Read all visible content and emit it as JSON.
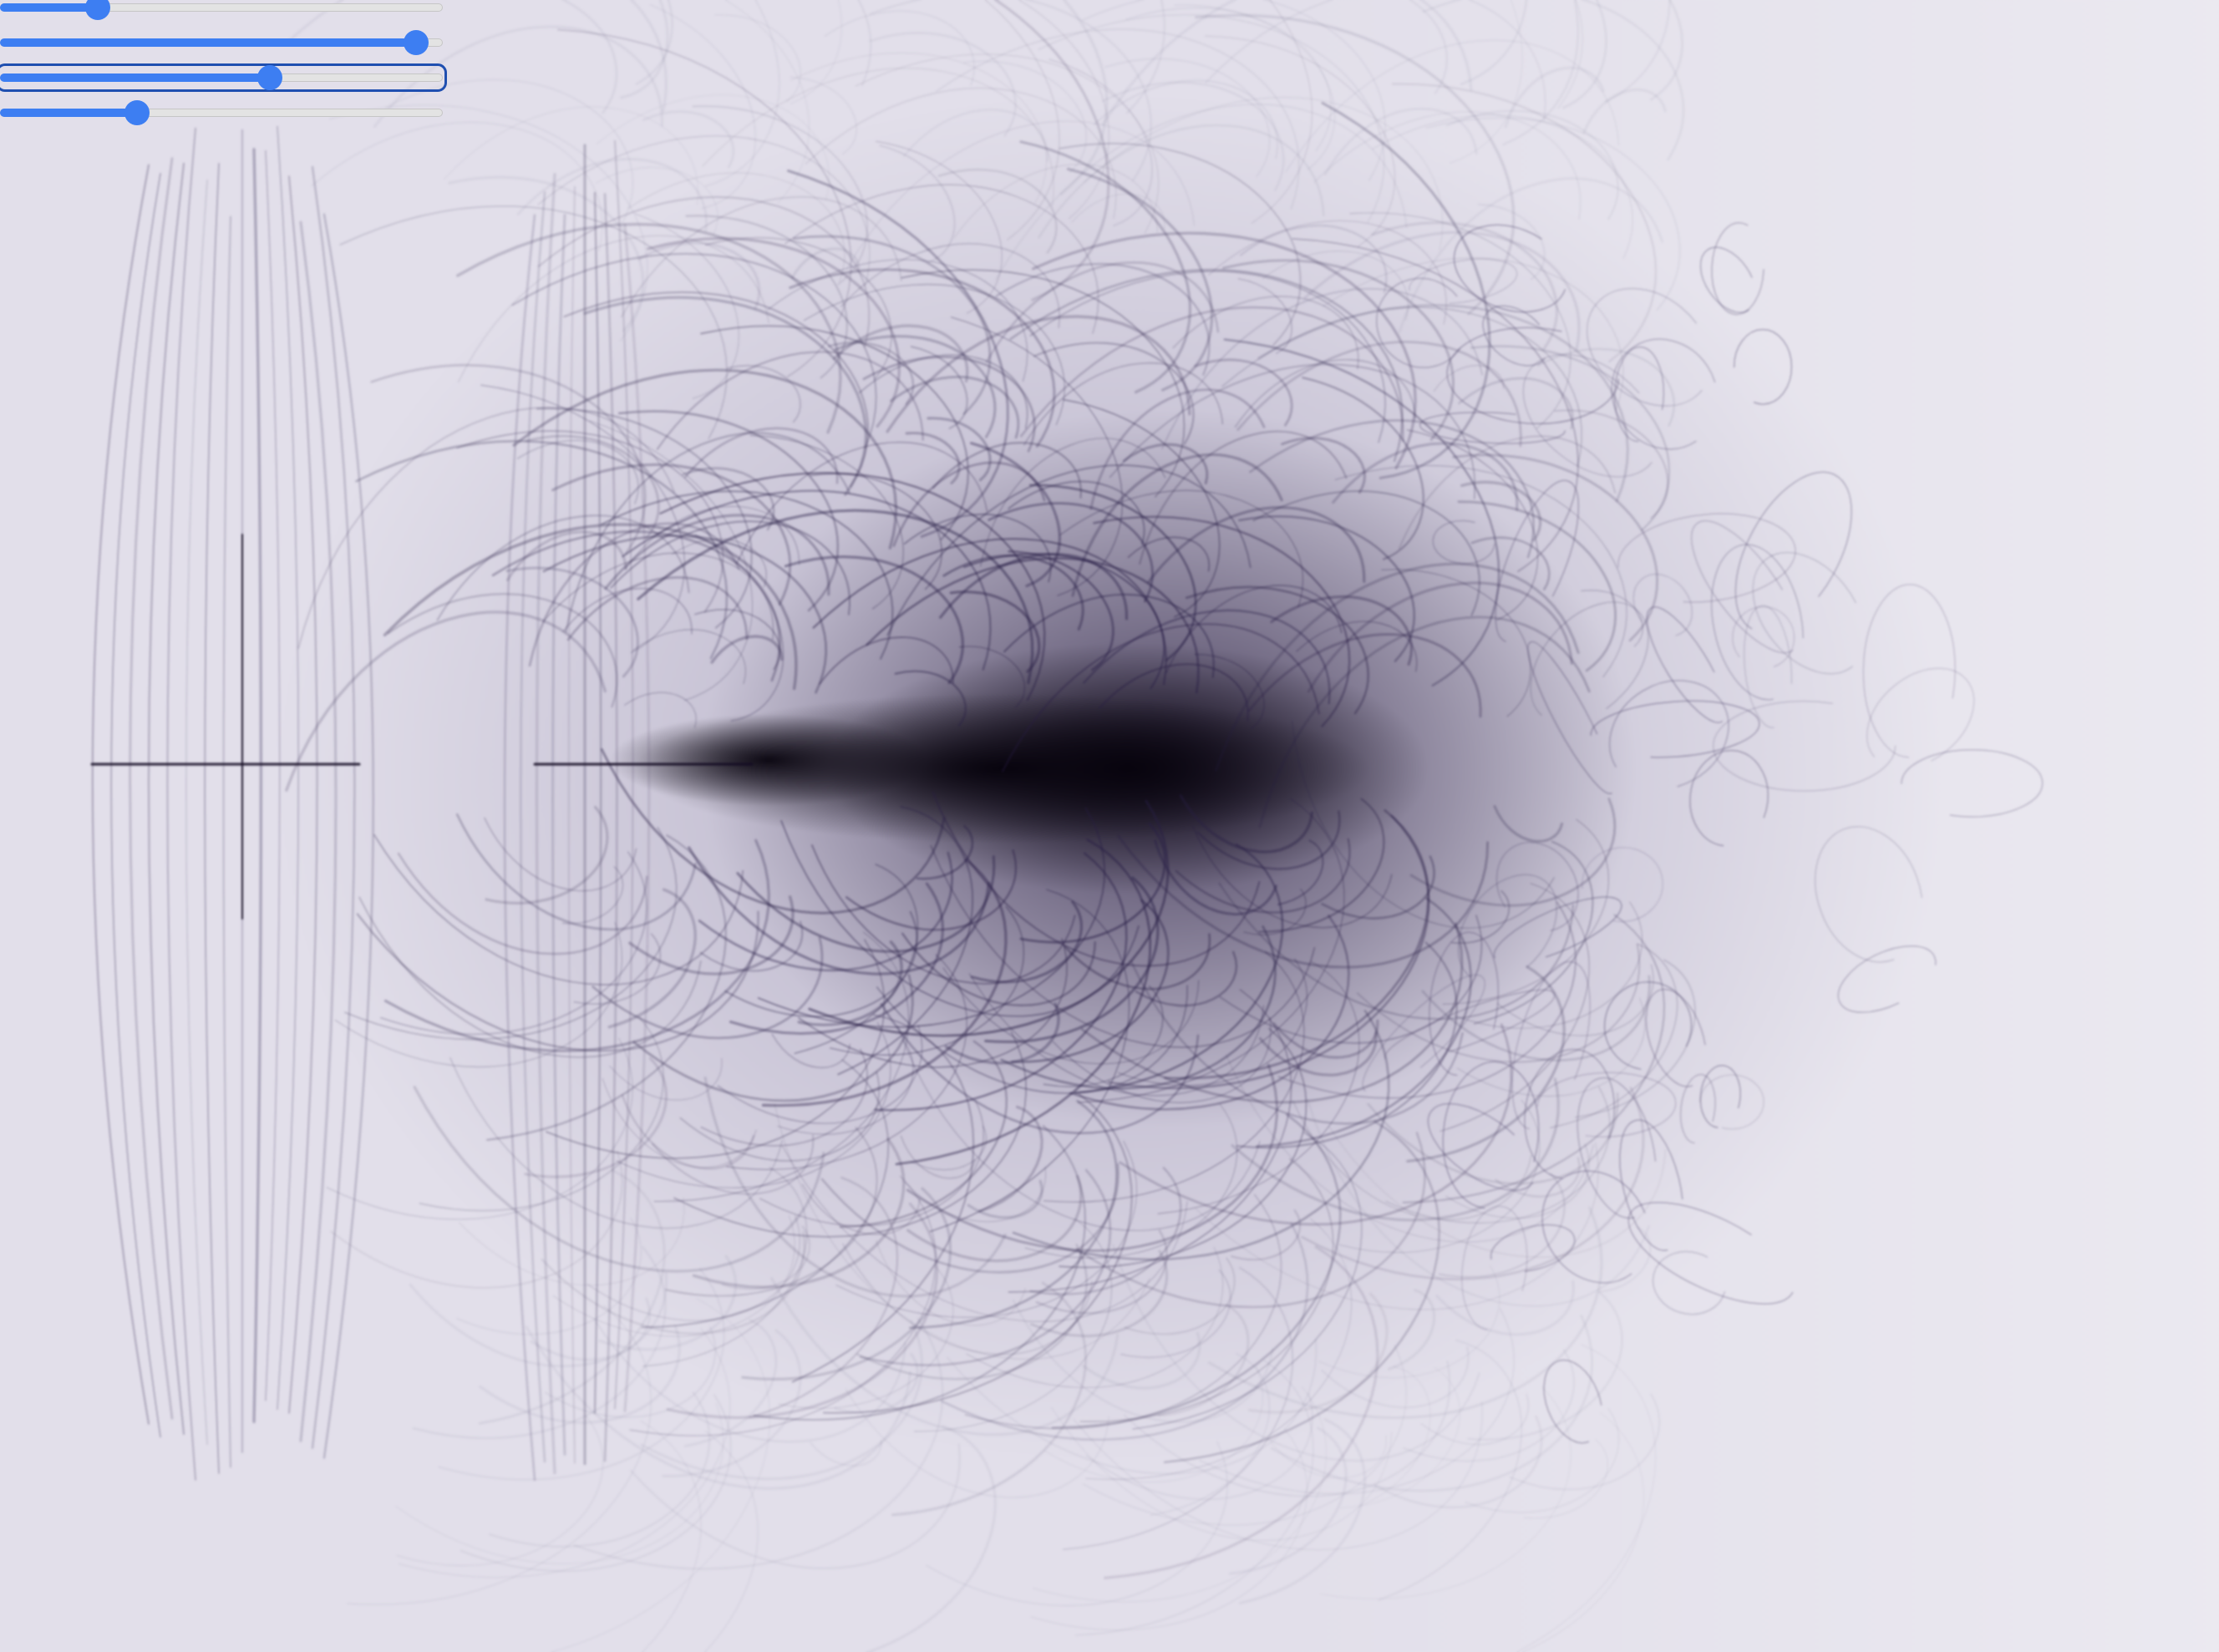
{
  "scene": {
    "background_color": "#e2dfea",
    "ink_color": "#0c0714",
    "accent_color": "#3d7ef2"
  },
  "controls": {
    "sliders": [
      {
        "name": "slider-1",
        "value": 0.22,
        "focused": false
      },
      {
        "name": "slider-2",
        "value": 0.94,
        "focused": false
      },
      {
        "name": "slider-3",
        "value": 0.61,
        "focused": true
      },
      {
        "name": "slider-4",
        "value": 0.31,
        "focused": false
      }
    ]
  }
}
